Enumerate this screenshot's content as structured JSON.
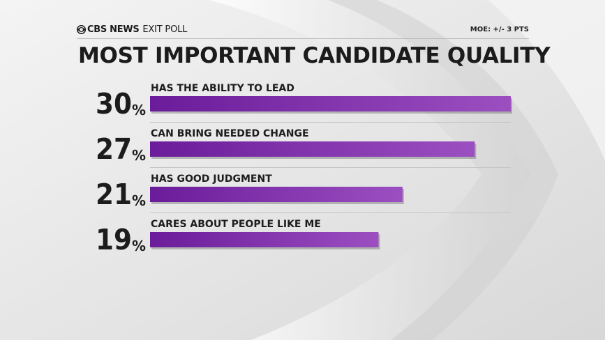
{
  "header": {
    "brand": "CBS NEWS",
    "subtitle": "EXIT POLL",
    "moe": "MOE: +/- 3 PTS"
  },
  "colors": {
    "bar_start": "#6a1c9a",
    "bar_end": "#9b4fc0",
    "text": "#1c1c1c"
  },
  "chart_data": {
    "type": "bar",
    "orientation": "horizontal",
    "title": "MOST IMPORTANT CANDIDATE QUALITY",
    "categories": [
      "HAS THE ABILITY TO LEAD",
      "CAN BRING NEEDED CHANGE",
      "HAS GOOD JUDGMENT",
      "CARES ABOUT PEOPLE LIKE ME"
    ],
    "values": [
      30,
      27,
      21,
      19
    ],
    "value_labels": [
      "30",
      "27",
      "21",
      "19"
    ],
    "value_suffix": "%",
    "xlim": [
      0,
      30
    ],
    "grid": false,
    "legend": "none"
  }
}
